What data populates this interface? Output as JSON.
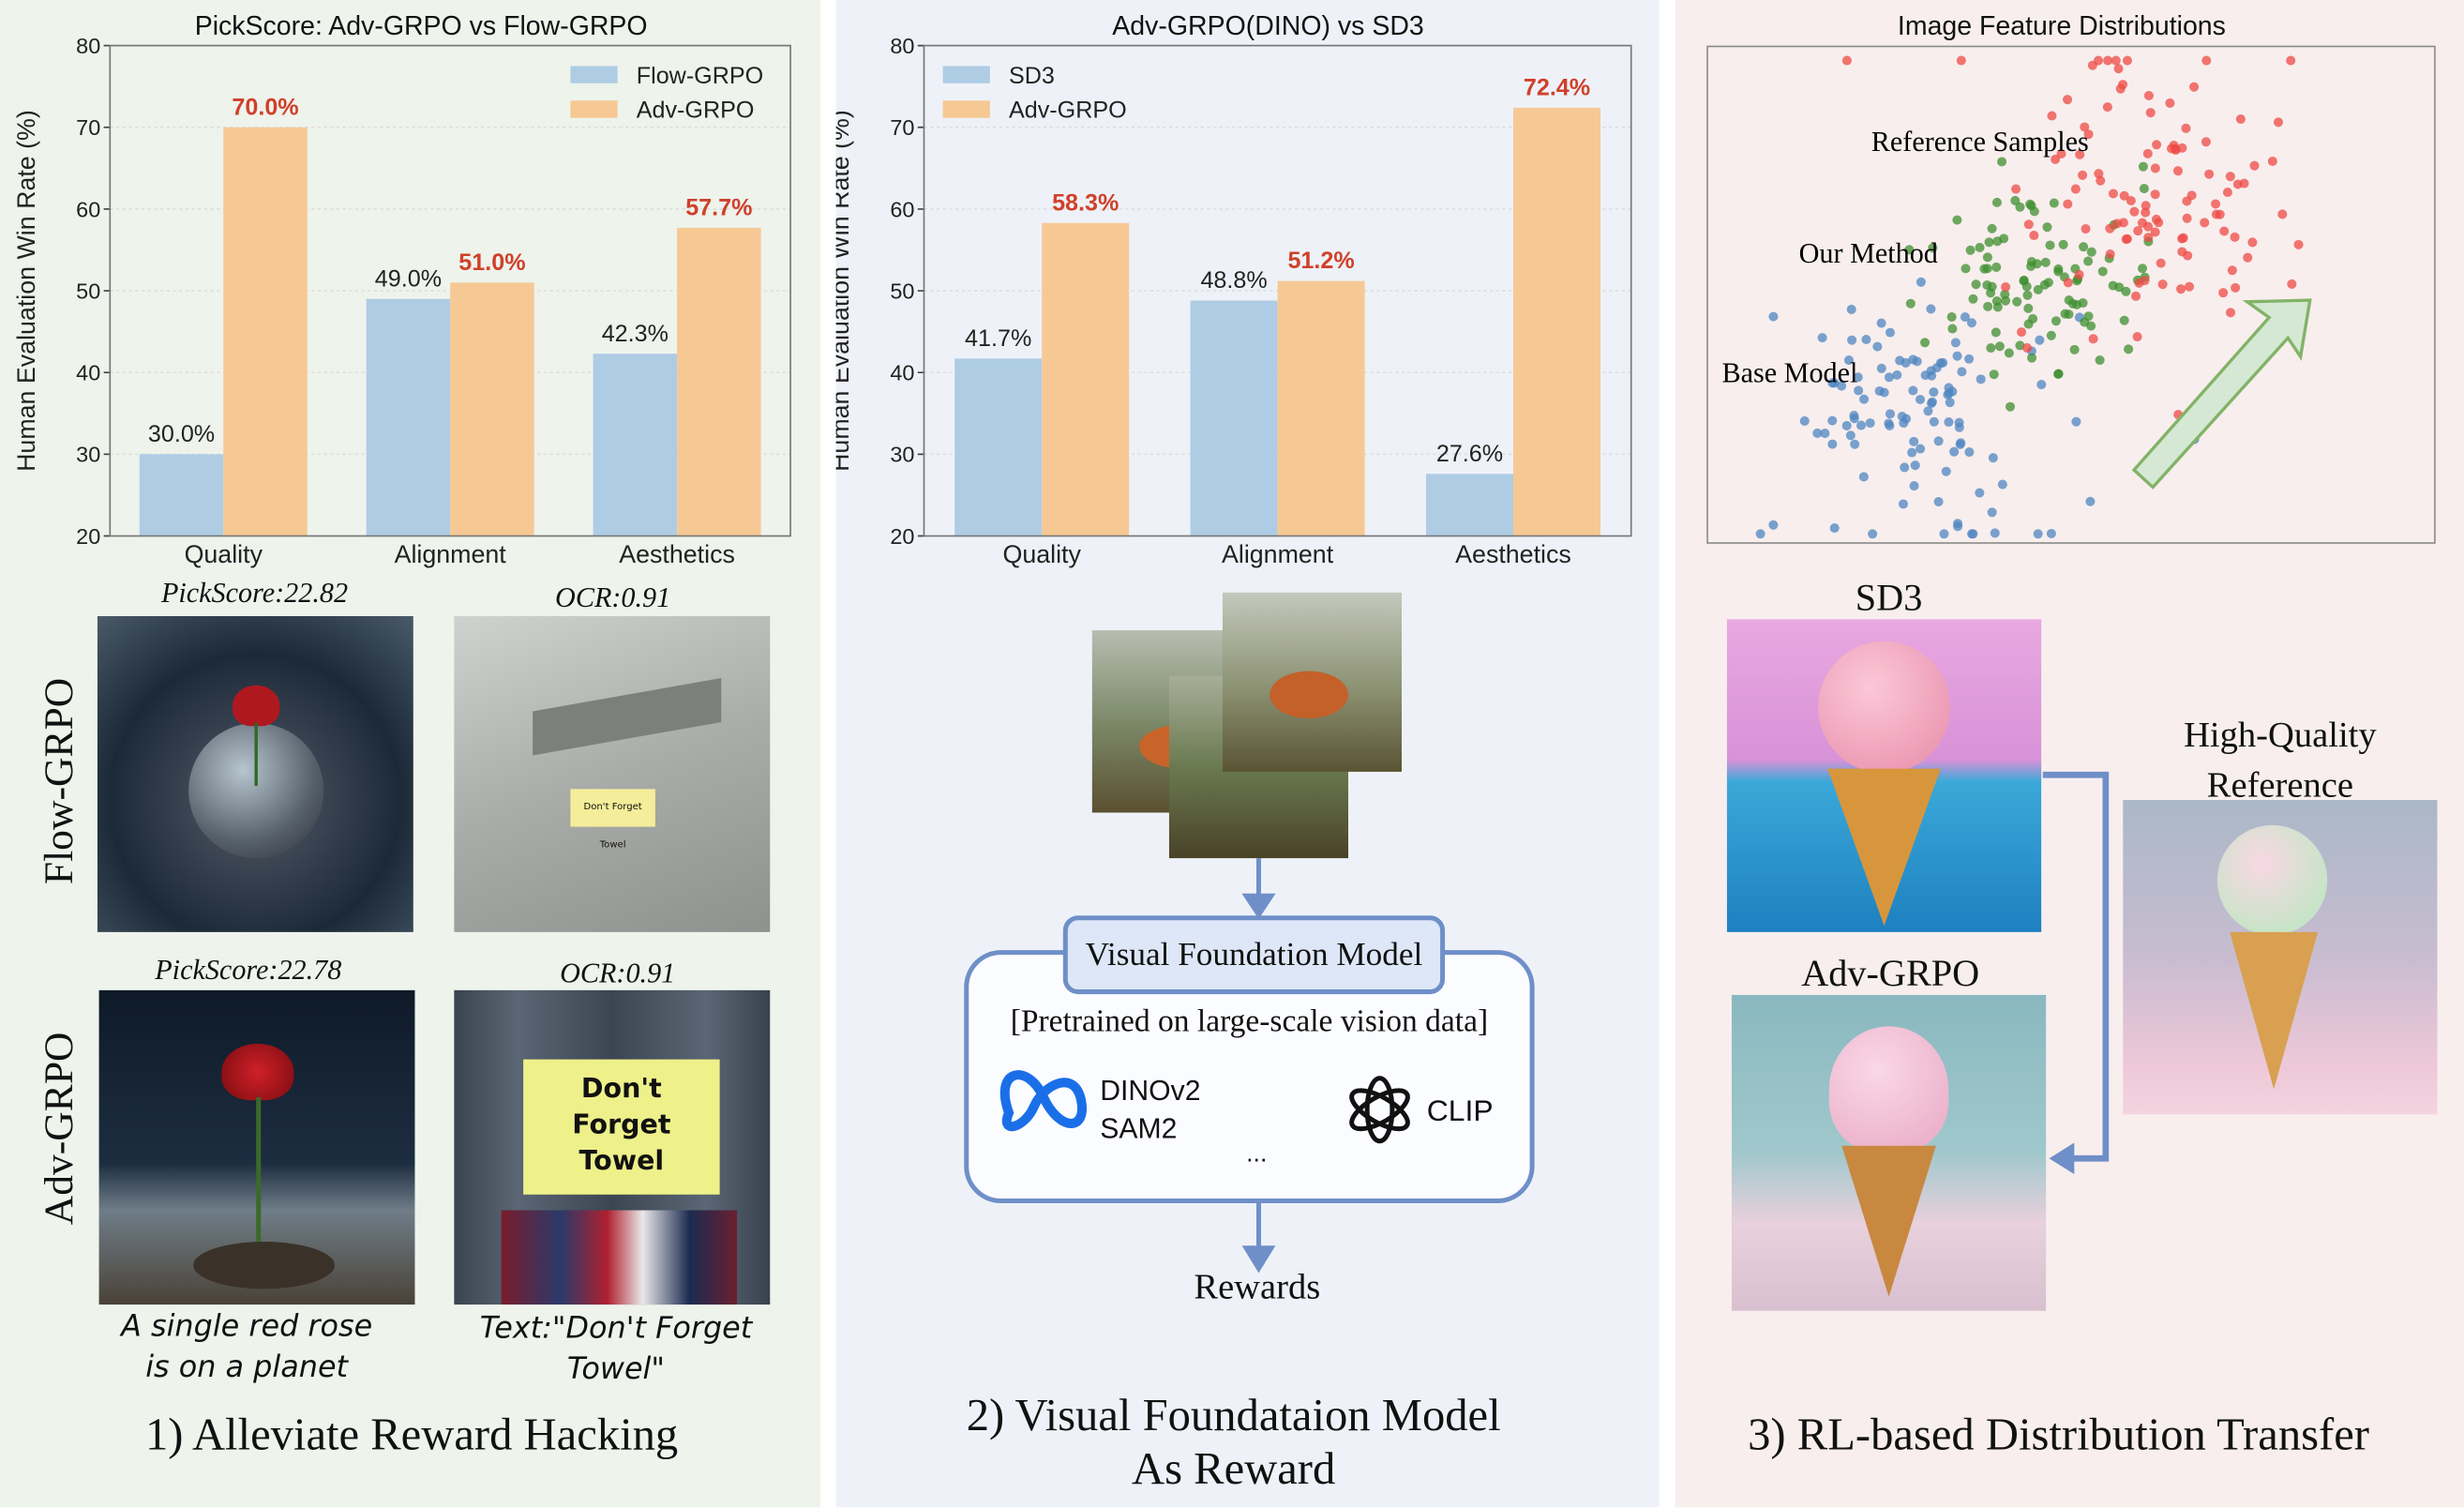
{
  "panel1": {
    "row_labels": {
      "flow": "Flow-GRPO",
      "adv": "Adv-GRPO"
    },
    "image_scores": [
      "PickScore:22.82",
      "OCR:0.91",
      "PickScore:22.78",
      "OCR:0.91"
    ],
    "note_text": "Don't Forget Towel",
    "sign_text": [
      "Don't",
      "Forget",
      "Towel"
    ],
    "prompt_rose": [
      "A single red rose",
      "is on a planet"
    ],
    "prompt_text": [
      "Text:\"Don't Forget",
      "Towel\""
    ],
    "title": "1) Alleviate Reward Hacking"
  },
  "panel2": {
    "vfm_title": "Visual Foundation Model",
    "pretrained": "[Pretrained on large-scale vision data]",
    "models": [
      "DINOv2",
      "SAM2"
    ],
    "ellipsis": "...",
    "clip": "CLIP",
    "rewards": "Rewards",
    "title_lines": [
      "2) Visual Foundataion Model",
      "As Reward"
    ]
  },
  "panel3": {
    "sd3": "SD3",
    "adv": "Adv-GRPO",
    "hq_lines": [
      "High-Quality",
      "Reference"
    ],
    "title": "3) RL-based Distribution Transfer"
  },
  "chart_data": [
    {
      "type": "bar",
      "title": "PickScore: Adv-GRPO vs Flow-GRPO",
      "ylabel": "Human Evaluation Win Rate (%)",
      "xlabel": "",
      "ylim": [
        20,
        80
      ],
      "yticks": [
        20,
        30,
        40,
        50,
        60,
        70,
        80
      ],
      "categories": [
        "Quality",
        "Alignment",
        "Aesthetics"
      ],
      "legend": "top-right",
      "grid": true,
      "series": [
        {
          "name": "Flow-GRPO",
          "color": "#aecde4",
          "values": [
            30.0,
            49.0,
            42.3
          ],
          "labels": [
            "30.0%",
            "49.0%",
            "42.3%"
          ]
        },
        {
          "name": "Adv-GRPO",
          "color": "#f6c994",
          "values": [
            70.0,
            51.0,
            57.7
          ],
          "labels": [
            "70.0%",
            "51.0%",
            "57.7%"
          ]
        }
      ]
    },
    {
      "type": "bar",
      "title": "Adv-GRPO(DINO) vs SD3",
      "ylabel": "Human Evaluation Win Rate (%)",
      "xlabel": "",
      "ylim": [
        20,
        80
      ],
      "yticks": [
        20,
        30,
        40,
        50,
        60,
        70,
        80
      ],
      "categories": [
        "Quality",
        "Alignment",
        "Aesthetics"
      ],
      "legend": "top-left",
      "grid": true,
      "series": [
        {
          "name": "SD3",
          "color": "#aecde4",
          "values": [
            41.7,
            48.8,
            27.6
          ],
          "labels": [
            "41.7%",
            "48.8%",
            "27.6%"
          ]
        },
        {
          "name": "Adv-GRPO",
          "color": "#f6c994",
          "values": [
            58.3,
            51.2,
            72.4
          ],
          "labels": [
            "58.3%",
            "51.2%",
            "72.4%"
          ]
        }
      ]
    },
    {
      "type": "scatter",
      "title": "Image Feature Distributions",
      "annotations": [
        "Reference Samples",
        "Our Method",
        "Base Model"
      ],
      "series": [
        {
          "name": "Base Model",
          "color": "#4f86c0",
          "count": 110,
          "center": [
            0.28,
            0.74
          ],
          "spread": [
            0.1,
            0.13
          ]
        },
        {
          "name": "Our Method",
          "color": "#3f8f2f",
          "count": 100,
          "center": [
            0.46,
            0.48
          ],
          "spread": [
            0.08,
            0.1
          ]
        },
        {
          "name": "Reference Samples",
          "color": "#ef4a44",
          "count": 110,
          "center": [
            0.62,
            0.31
          ],
          "spread": [
            0.1,
            0.14
          ]
        }
      ]
    }
  ]
}
